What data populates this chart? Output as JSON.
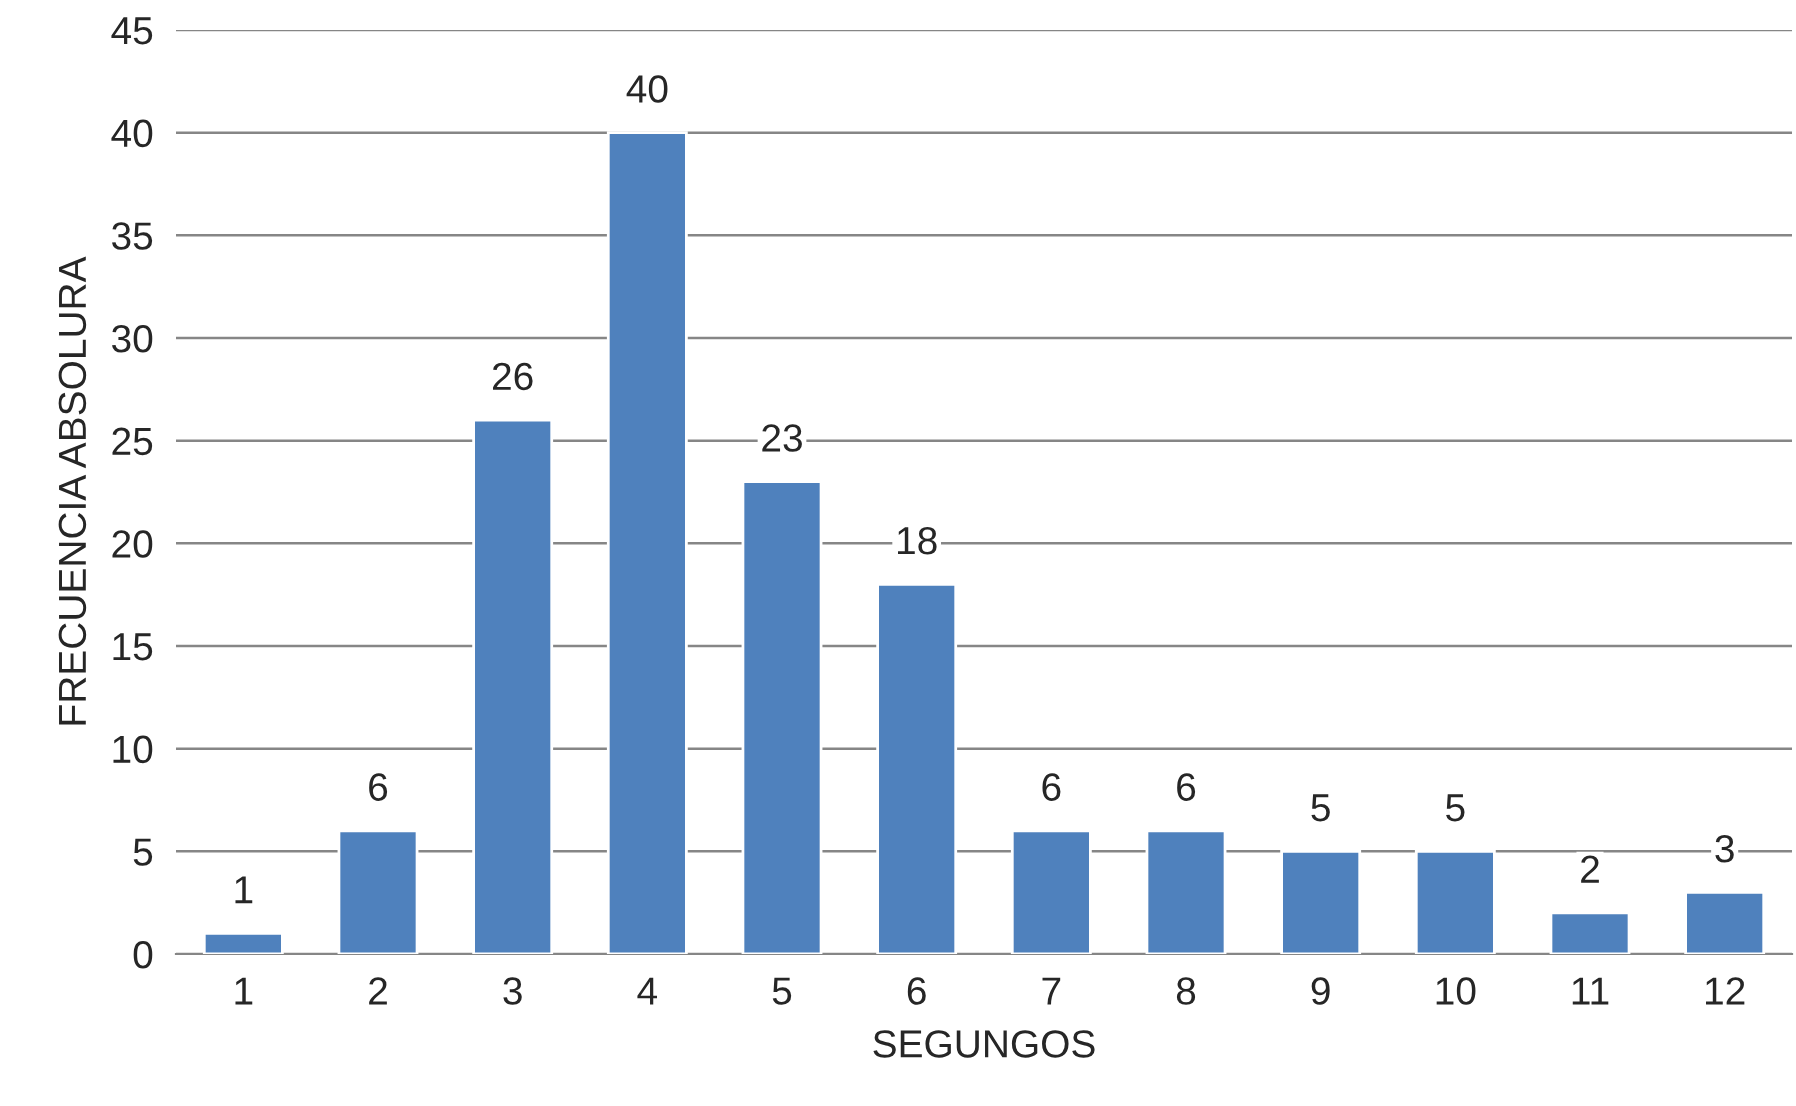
{
  "chart_data": {
    "type": "bar",
    "xlabel": "SEGUNGOS",
    "ylabel": "FRECUENCIA ABSOLURA",
    "categories": [
      "1",
      "2",
      "3",
      "4",
      "5",
      "6",
      "7",
      "8",
      "9",
      "10",
      "11",
      "12"
    ],
    "values": [
      1,
      6,
      26,
      40,
      23,
      18,
      6,
      6,
      5,
      5,
      2,
      3
    ],
    "color": "#4f81bd",
    "ylim": [
      0,
      45
    ],
    "yticks": [
      0,
      5,
      10,
      15,
      20,
      25,
      30,
      35,
      40,
      45
    ],
    "grid": "y",
    "data_labels": true,
    "legend": false
  }
}
